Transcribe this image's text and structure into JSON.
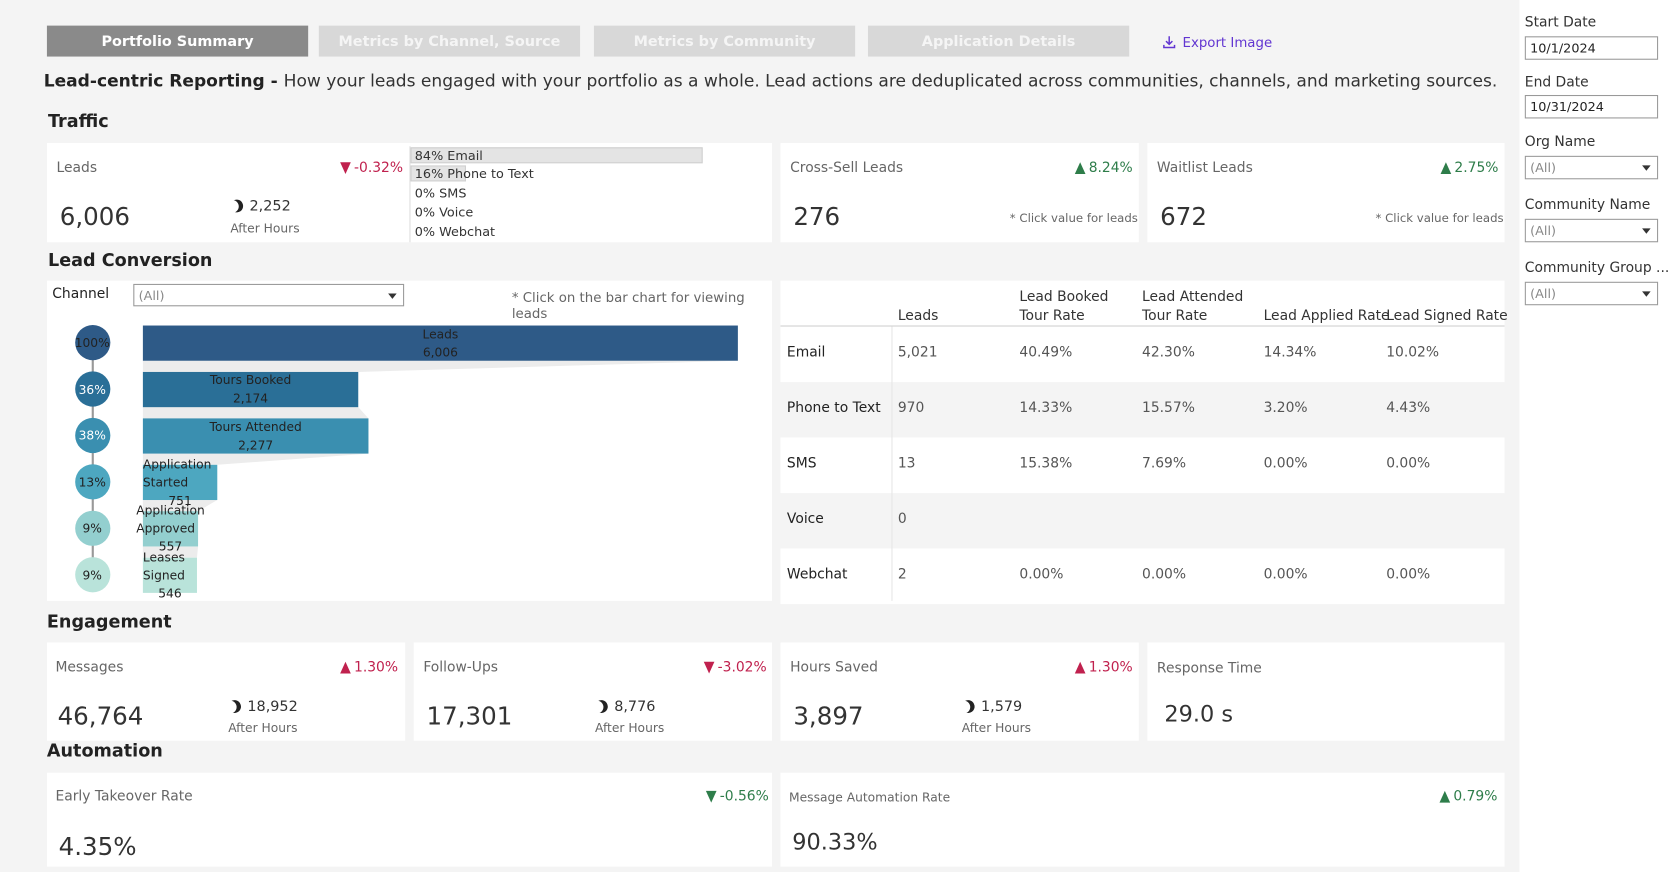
{
  "tabs": [
    "Portfolio Summary",
    "Metrics by Channel, Source",
    "Metrics by Community",
    "Application Details"
  ],
  "export_label": "Export Image",
  "headline": {
    "bold": "Lead-centric Reporting - ",
    "text": "How your leads engaged with your portfolio as a whole. Lead actions are deduplicated across communities, channels, and marketing sources."
  },
  "traffic": {
    "title": "Traffic",
    "leads": {
      "label": "Leads",
      "value": "6,006",
      "delta": "-0.32%",
      "after_value": "2,252",
      "after_label": "After Hours",
      "split": [
        {
          "text": "84%  Email",
          "pct": 84
        },
        {
          "text": "16%  Phone to Text",
          "pct": 16
        },
        {
          "text": "0%  SMS",
          "pct": 0
        },
        {
          "text": "0%  Voice",
          "pct": 0
        },
        {
          "text": "0%  Webchat",
          "pct": 0
        }
      ]
    },
    "cross_sell": {
      "label": "Cross-Sell Leads",
      "value": "276",
      "delta": "8.24%",
      "note": "* Click value for leads"
    },
    "waitlist": {
      "label": "Waitlist Leads",
      "value": "672",
      "delta": "2.75%",
      "note": "* Click value for leads"
    }
  },
  "conversion": {
    "title": "Lead Conversion",
    "channel_label": "Channel",
    "channel_value": "(All)",
    "hint": "* Click on the bar chart for viewing leads"
  },
  "chart_data": {
    "type": "bar",
    "categories": [
      "Leads",
      "Tours Booked",
      "Tours Attended",
      "Application Started",
      "Application Approved",
      "Leases Signed"
    ],
    "values": [
      6006,
      2174,
      2277,
      751,
      557,
      546
    ],
    "value_labels": [
      "6,006",
      "2,174",
      "2,277",
      "751",
      "557",
      "546"
    ],
    "step_pct": [
      "100%",
      "36%",
      "38%",
      "13%",
      "9%",
      "9%"
    ],
    "colors": [
      "#2e5a87",
      "#2a6f97",
      "#3a8fb0",
      "#4da7c0",
      "#93cfcf",
      "#b9e3da"
    ],
    "circle_text": [
      "#222222",
      "#ffffff",
      "#ffffff",
      "#222222",
      "#222222",
      "#222222"
    ],
    "xlim": [
      0,
      6006
    ]
  },
  "conv_table": {
    "headers": [
      "Leads",
      "Lead Booked Tour Rate",
      "Lead Attended Tour Rate",
      "Lead Applied Rate",
      "Lead Signed Rate"
    ],
    "rows": [
      {
        "channel": "Email",
        "cells": [
          "5,021",
          "40.49%",
          "42.30%",
          "14.34%",
          "10.02%"
        ]
      },
      {
        "channel": "Phone to Text",
        "cells": [
          "970",
          "14.33%",
          "15.57%",
          "3.20%",
          "4.43%"
        ]
      },
      {
        "channel": "SMS",
        "cells": [
          "13",
          "15.38%",
          "7.69%",
          "0.00%",
          "0.00%"
        ]
      },
      {
        "channel": "Voice",
        "cells": [
          "0",
          "",
          "",
          "",
          ""
        ]
      },
      {
        "channel": "Webchat",
        "cells": [
          "2",
          "0.00%",
          "0.00%",
          "0.00%",
          "0.00%"
        ]
      }
    ]
  },
  "engagement": {
    "title": "Engagement",
    "messages": {
      "label": "Messages",
      "value": "46,764",
      "delta": "1.30%",
      "after_value": "18,952",
      "after_label": "After Hours"
    },
    "followups": {
      "label": "Follow-Ups",
      "value": "17,301",
      "delta": "-3.02%",
      "after_value": "8,776",
      "after_label": "After Hours"
    },
    "hours_saved": {
      "label": "Hours Saved",
      "value": "3,897",
      "delta": "1.30%",
      "after_value": "1,579",
      "after_label": "After Hours"
    },
    "response_time": {
      "label": "Response Time",
      "value": "29.0 s"
    }
  },
  "automation": {
    "title": "Automation",
    "early_takeover": {
      "label": "Early Takeover Rate",
      "value": "4.35%",
      "delta": "-0.56%"
    },
    "message_automation": {
      "label": "Message Automation Rate",
      "value": "90.33%",
      "delta": "0.79%"
    }
  },
  "filters": {
    "start_date_label": "Start Date",
    "start_date": "10/1/2024",
    "end_date_label": "End Date",
    "end_date": "10/31/2024",
    "org_label": "Org Name",
    "org_value": "(All)",
    "community_label": "Community Name",
    "community_value": "(All)",
    "group_label": "Community Group ...",
    "group_value": "(All)"
  }
}
